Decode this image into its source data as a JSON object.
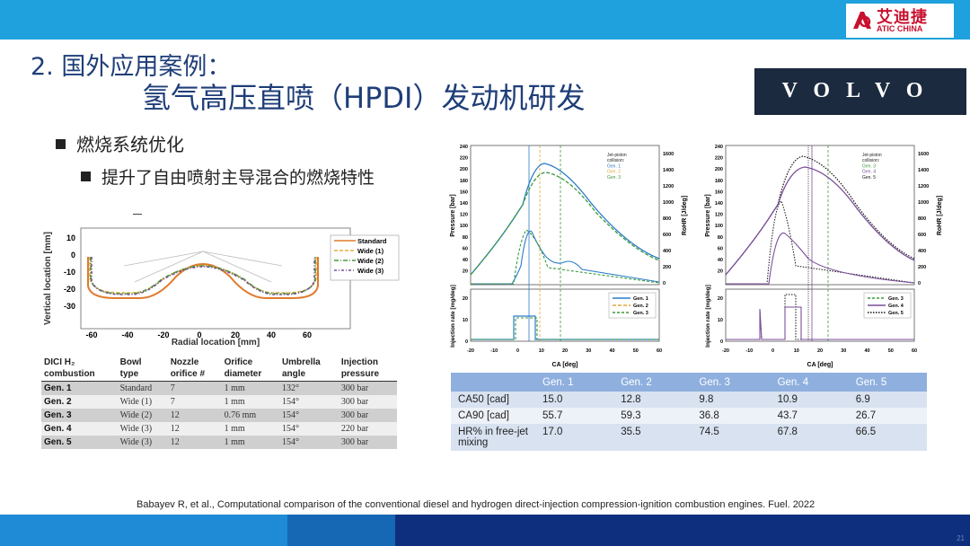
{
  "header": {
    "logo_cn": "艾迪捷",
    "logo_en": "ATIC CHINA",
    "title_line1": "2. 国外应用案例：",
    "title_line2": "氢气高压直喷（HPDI）发动机研发",
    "brand": "VOLVO",
    "brand_color": "#1b2a3e",
    "accent_color": "#1ea1dc"
  },
  "bullets": {
    "level1": "燃烧系统优化",
    "level2": "提升了自由喷射主导混合的燃烧特性"
  },
  "bowl_plot": {
    "ylabel": "Vertical location [mm]",
    "xlabel": "Radial location [mm]",
    "xticks": [
      "-60",
      "-40",
      "-20",
      "0",
      "20",
      "40",
      "60"
    ],
    "yticks": [
      "10",
      "0",
      "-10",
      "-20",
      "-30"
    ],
    "legend": [
      "Standard",
      "Wide (1)",
      "Wide (2)",
      "Wide (3)"
    ]
  },
  "dici_table": {
    "headers": [
      [
        "DICI H₂",
        "combustion"
      ],
      [
        "Bowl",
        "type"
      ],
      [
        "Nozzle",
        "orifice #"
      ],
      [
        "Orifice",
        "diameter"
      ],
      [
        "Umbrella",
        "angle"
      ],
      [
        "Injection",
        "pressure"
      ]
    ],
    "rows": [
      [
        "Gen. 1",
        "Standard",
        "7",
        "1 mm",
        "132°",
        "300 bar"
      ],
      [
        "Gen. 2",
        "Wide (1)",
        "7",
        "1 mm",
        "154°",
        "300 bar"
      ],
      [
        "Gen. 3",
        "Wide (2)",
        "12",
        "0.76 mm",
        "154°",
        "300 bar"
      ],
      [
        "Gen. 4",
        "Wide (3)",
        "12",
        "1 mm",
        "154°",
        "220 bar"
      ],
      [
        "Gen. 5",
        "Wide (3)",
        "12",
        "1 mm",
        "154°",
        "300 bar"
      ]
    ]
  },
  "pressure_plots": {
    "left_axis": "Pressure [bar]",
    "right_axis": "RoHR [J/deg]",
    "inj_axis": "Injection rate [mg/deg]",
    "xlabel": "CA [deg]",
    "p_ticks": [
      "240",
      "220",
      "200",
      "180",
      "160",
      "140",
      "120",
      "100",
      "80",
      "60",
      "40",
      "20"
    ],
    "r_ticks": [
      "1600",
      "1400",
      "1200",
      "1000",
      "800",
      "600",
      "400",
      "200",
      "0"
    ],
    "inj_ticks": [
      "20",
      "10",
      "0"
    ],
    "x_ticks": [
      "-20",
      "-10",
      "0",
      "10",
      "20",
      "30",
      "40",
      "50",
      "60"
    ],
    "annot_left": [
      "Jet-piston",
      "collision:",
      "Gen. 1",
      "Gen. 2",
      "Gen. 3"
    ],
    "annot_right": [
      "Jet-piston",
      "collision:",
      "Gen. 3",
      "Gen. 4",
      "Gen. 5"
    ],
    "legend_left": [
      "Gen. 1",
      "Gen. 2",
      "Gen. 3"
    ],
    "legend_right": [
      "Gen. 3",
      "Gen. 4",
      "Gen. 5"
    ]
  },
  "results_table": {
    "headers": [
      "",
      "Gen. 1",
      "Gen. 2",
      "Gen. 3",
      "Gen. 4",
      "Gen. 5"
    ],
    "rows": [
      [
        "CA50 [cad]",
        "15.0",
        "12.8",
        "9.8",
        "10.9",
        "6.9"
      ],
      [
        "CA90 [cad]",
        "55.7",
        "59.3",
        "36.8",
        "43.7",
        "26.7"
      ],
      [
        "HR% in free-jet mixing",
        "17.0",
        "35.5",
        "74.5",
        "67.8",
        "66.5"
      ]
    ]
  },
  "reference": "Babayev R, et al., Computational comparison of the conventional diesel and hydrogen direct-injection compression-ignition combustion engines. Fuel. 2022",
  "page_number": "21"
}
